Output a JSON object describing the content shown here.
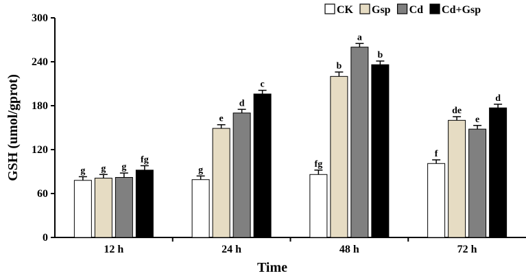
{
  "chart_data": {
    "type": "bar",
    "title": "",
    "xlabel": "Time",
    "ylabel": "GSH (umol/gprot)",
    "ylim": [
      0,
      300
    ],
    "yticks": [
      0,
      60,
      120,
      180,
      240,
      300
    ],
    "categories": [
      "12 h",
      "24 h",
      "48 h",
      "72 h"
    ],
    "legend_position": "top-right",
    "series": [
      {
        "name": "CK",
        "color": "#ffffff",
        "values": [
          78,
          79,
          86,
          101
        ],
        "errors": [
          5,
          5,
          6,
          5
        ],
        "letters": [
          "g",
          "g",
          "fg",
          "f"
        ]
      },
      {
        "name": "Gsp",
        "color": "#e6dcc3",
        "values": [
          81,
          149,
          220,
          160
        ],
        "errors": [
          5,
          5,
          6,
          5
        ],
        "letters": [
          "g",
          "e",
          "b",
          "de"
        ]
      },
      {
        "name": "Cd",
        "color": "#808080",
        "values": [
          82,
          170,
          260,
          148
        ],
        "errors": [
          6,
          5,
          5,
          5
        ],
        "letters": [
          "g",
          "d",
          "a",
          "e"
        ]
      },
      {
        "name": "Cd+Gsp",
        "color": "#000000",
        "values": [
          92,
          196,
          236,
          177
        ],
        "errors": [
          6,
          5,
          5,
          5
        ],
        "letters": [
          "fg",
          "c",
          "b",
          "d"
        ]
      }
    ]
  }
}
